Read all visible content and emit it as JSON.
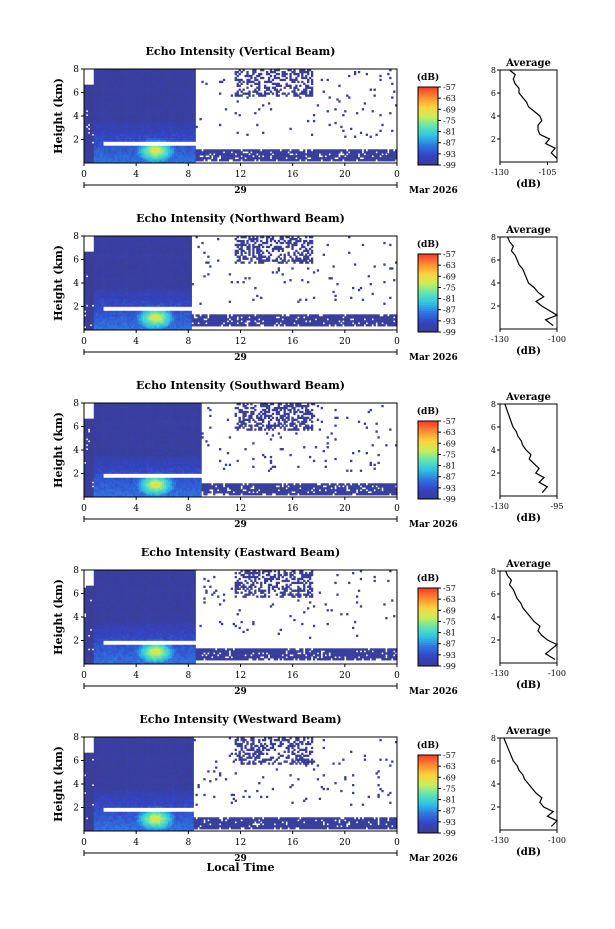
{
  "chart_data": [
    {
      "type": "heatmap",
      "title": "Echo Intensity (Vertical Beam)",
      "ylabel": "Height (km)",
      "yticks": [
        "2",
        "4",
        "6",
        "8"
      ],
      "xticks": [
        "0",
        "4",
        "8",
        "12",
        "16",
        "20",
        "0"
      ],
      "date_day": "29",
      "date_month": "Mar 2026",
      "ylim": [
        0,
        8
      ],
      "xlim": [
        0,
        24
      ],
      "colorbar": {
        "unit": "(dB)",
        "ticks": [
          "-57",
          "-63",
          "-69",
          "-75",
          "-81",
          "-87",
          "-93",
          "-99"
        ],
        "range": [
          -99,
          -57
        ]
      },
      "features": {
        "dense_echo_end_hr": 8.5,
        "bright_layer_km": 1.7,
        "low_layer_km": 0.7,
        "core_hr": 5.5
      },
      "profile": {
        "title": "Average",
        "xlabel": "(dB)",
        "xticks": [
          "-130",
          "-105"
        ],
        "xlim": [
          -130,
          -100
        ],
        "yticks": [
          "2",
          "4",
          "6",
          "8"
        ],
        "height_km": [
          0.3,
          0.8,
          1.2,
          1.6,
          2.0,
          2.4,
          2.8,
          3.2,
          3.6,
          4.0,
          4.4,
          4.8,
          5.2,
          5.6,
          6.0,
          6.4,
          6.8,
          7.2,
          7.6,
          8.0
        ],
        "values_db": [
          -100,
          -103,
          -101,
          -106,
          -104,
          -109,
          -110,
          -110,
          -108,
          -109,
          -112,
          -115,
          -116,
          -118,
          -120,
          -120,
          -122,
          -123,
          -122,
          -125
        ]
      }
    },
    {
      "type": "heatmap",
      "title": "Echo Intensity (Northward Beam)",
      "ylabel": "Height (km)",
      "yticks": [
        "2",
        "4",
        "6",
        "8"
      ],
      "xticks": [
        "0",
        "4",
        "8",
        "12",
        "16",
        "20",
        "0"
      ],
      "date_day": "29",
      "date_month": "Mar 2026",
      "ylim": [
        0,
        8
      ],
      "xlim": [
        0,
        24
      ],
      "colorbar": {
        "unit": "(dB)",
        "ticks": [
          "-57",
          "-63",
          "-69",
          "-75",
          "-81",
          "-87",
          "-93",
          "-99"
        ],
        "range": [
          -99,
          -57
        ]
      },
      "features": {
        "dense_echo_end_hr": 8.3,
        "bright_layer_km": 1.8,
        "low_layer_km": 0.8,
        "core_hr": 5.5
      },
      "profile": {
        "title": "Average",
        "xlabel": "(dB)",
        "xticks": [
          "-130",
          "-100"
        ],
        "xlim": [
          -130,
          -100
        ],
        "yticks": [
          "2",
          "4",
          "6",
          "8"
        ],
        "height_km": [
          0.3,
          0.8,
          1.2,
          1.6,
          2.0,
          2.4,
          2.8,
          3.2,
          3.6,
          4.0,
          4.4,
          4.8,
          5.2,
          5.6,
          6.0,
          6.4,
          6.8,
          7.2,
          7.6,
          8.0
        ],
        "values_db": [
          -102,
          -106,
          -100,
          -104,
          -108,
          -111,
          -107,
          -110,
          -112,
          -115,
          -116,
          -117,
          -118,
          -120,
          -121,
          -122,
          -124,
          -123,
          -125,
          -126
        ]
      }
    },
    {
      "type": "heatmap",
      "title": "Echo Intensity (Southward Beam)",
      "ylabel": "Height (km)",
      "yticks": [
        "2",
        "4",
        "6",
        "8"
      ],
      "xticks": [
        "0",
        "4",
        "8",
        "12",
        "16",
        "20",
        "0"
      ],
      "date_day": "29",
      "date_month": "Mar 2026",
      "ylim": [
        0,
        8
      ],
      "xlim": [
        0,
        24
      ],
      "colorbar": {
        "unit": "(dB)",
        "ticks": [
          "-57",
          "-63",
          "-69",
          "-75",
          "-81",
          "-87",
          "-93",
          "-99"
        ],
        "range": [
          -99,
          -57
        ]
      },
      "features": {
        "dense_echo_end_hr": 9.0,
        "bright_layer_km": 1.9,
        "low_layer_km": 0.7,
        "core_hr": 5.5
      },
      "profile": {
        "title": "Average",
        "xlabel": "(dB)",
        "xticks": [
          "-130",
          "-95"
        ],
        "xlim": [
          -130,
          -95
        ],
        "yticks": [
          "2",
          "4",
          "6",
          "8"
        ],
        "height_km": [
          0.3,
          0.8,
          1.2,
          1.6,
          2.0,
          2.4,
          2.8,
          3.2,
          3.6,
          4.0,
          4.4,
          4.8,
          5.2,
          5.6,
          6.0,
          6.4,
          6.8,
          7.2,
          7.6,
          8.0
        ],
        "values_db": [
          -104,
          -101,
          -106,
          -103,
          -108,
          -106,
          -109,
          -112,
          -111,
          -114,
          -116,
          -117,
          -119,
          -120,
          -122,
          -123,
          -124,
          -125,
          -126,
          -127
        ]
      }
    },
    {
      "type": "heatmap",
      "title": "Echo Intensity (Eastward Beam)",
      "ylabel": "Height (km)",
      "yticks": [
        "2",
        "4",
        "6",
        "8"
      ],
      "xticks": [
        "0",
        "4",
        "8",
        "12",
        "16",
        "20",
        "0"
      ],
      "date_day": "29",
      "date_month": "Mar 2026",
      "ylim": [
        0,
        8
      ],
      "xlim": [
        0,
        24
      ],
      "colorbar": {
        "unit": "(dB)",
        "ticks": [
          "-57",
          "-63",
          "-69",
          "-75",
          "-81",
          "-87",
          "-93",
          "-99"
        ],
        "range": [
          -99,
          -57
        ]
      },
      "features": {
        "dense_echo_end_hr": 8.6,
        "bright_layer_km": 1.8,
        "low_layer_km": 0.8,
        "core_hr": 5.5
      },
      "profile": {
        "title": "Average",
        "xlabel": "(dB)",
        "xticks": [
          "-130",
          "-100"
        ],
        "xlim": [
          -130,
          -100
        ],
        "yticks": [
          "2",
          "4",
          "6",
          "8"
        ],
        "height_km": [
          0.3,
          0.8,
          1.2,
          1.6,
          2.0,
          2.4,
          2.8,
          3.2,
          3.6,
          4.0,
          4.4,
          4.8,
          5.2,
          5.6,
          6.0,
          6.4,
          6.8,
          7.2,
          7.6,
          8.0
        ],
        "values_db": [
          -101,
          -106,
          -103,
          -100,
          -105,
          -108,
          -110,
          -109,
          -112,
          -114,
          -116,
          -118,
          -119,
          -121,
          -122,
          -123,
          -125,
          -124,
          -126,
          -127
        ]
      }
    },
    {
      "type": "heatmap",
      "title": "Echo Intensity (Westward Beam)",
      "ylabel": "Height (km)",
      "yticks": [
        "2",
        "4",
        "6",
        "8"
      ],
      "xticks": [
        "0",
        "4",
        "8",
        "12",
        "16",
        "20",
        "0"
      ],
      "date_day": "29",
      "date_month": "Mar 2026",
      "xlabel": "Local Time",
      "ylim": [
        0,
        8
      ],
      "xlim": [
        0,
        24
      ],
      "colorbar": {
        "unit": "(dB)",
        "ticks": [
          "-57",
          "-63",
          "-69",
          "-75",
          "-81",
          "-87",
          "-93",
          "-99"
        ],
        "range": [
          -99,
          -57
        ]
      },
      "features": {
        "dense_echo_end_hr": 8.4,
        "bright_layer_km": 1.9,
        "low_layer_km": 0.7,
        "core_hr": 5.5
      },
      "profile": {
        "title": "Average",
        "xlabel": "(dB)",
        "xticks": [
          "-130",
          "-100"
        ],
        "xlim": [
          -130,
          -100
        ],
        "yticks": [
          "2",
          "4",
          "6",
          "8"
        ],
        "height_km": [
          0.3,
          0.8,
          1.2,
          1.6,
          2.0,
          2.4,
          2.8,
          3.2,
          3.6,
          4.0,
          4.4,
          4.8,
          5.2,
          5.6,
          6.0,
          6.4,
          6.8,
          7.2,
          7.6,
          8.0
        ],
        "values_db": [
          -103,
          -100,
          -105,
          -102,
          -107,
          -109,
          -108,
          -111,
          -113,
          -115,
          -117,
          -118,
          -120,
          -121,
          -123,
          -124,
          -125,
          -126,
          -127,
          -128
        ]
      }
    }
  ],
  "colors": {
    "colormap": [
      "#3b3d8f",
      "#3344c4",
      "#2f74e0",
      "#2ec3e6",
      "#5fe3b4",
      "#c9ee58",
      "#ffd23f",
      "#ff8b2e",
      "#ff3b2a"
    ],
    "ink": "#000000"
  }
}
